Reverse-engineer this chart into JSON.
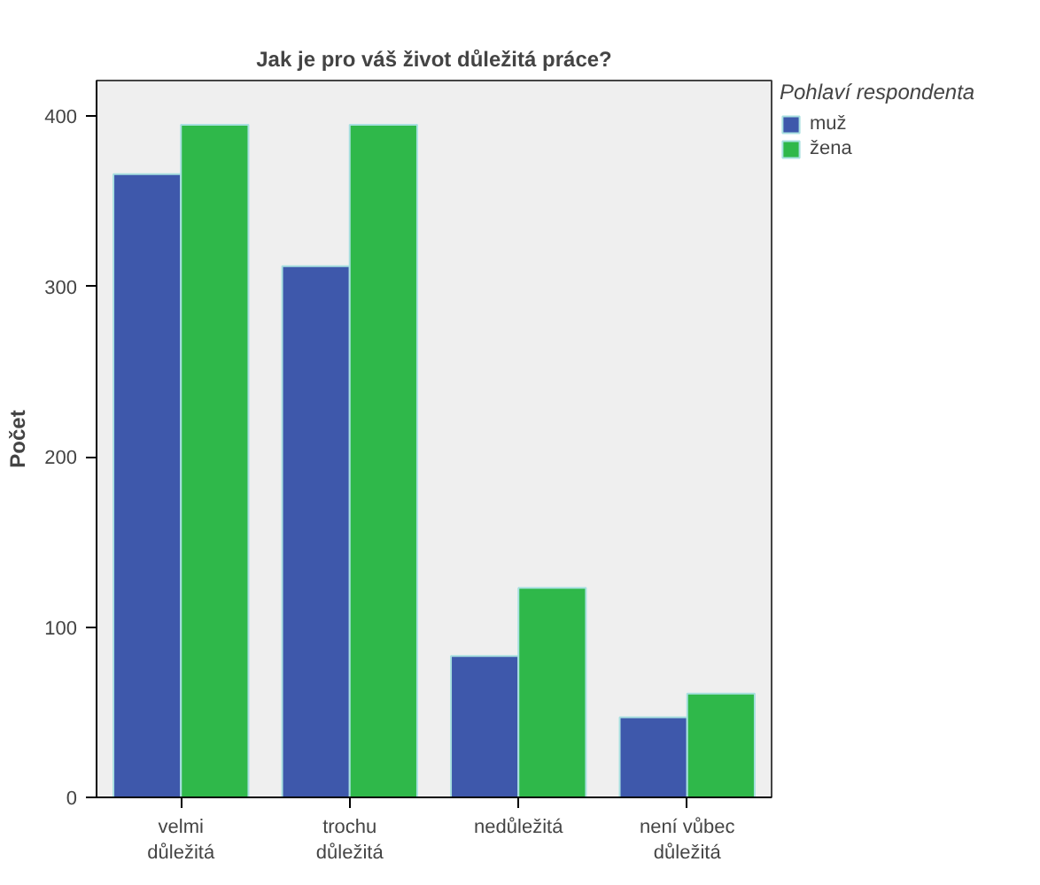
{
  "chart_data": {
    "type": "bar",
    "title": "Jak je pro váš život důležitá práce?",
    "ylabel": "Počet",
    "legend_title": "Pohlaví respondenta",
    "categories": [
      "velmi důležitá",
      "trochu důležitá",
      "nedůležitá",
      "není vůbec důležitá"
    ],
    "series": [
      {
        "name": "muž",
        "color": "#3e58ab",
        "values": [
          366,
          312,
          83,
          47
        ]
      },
      {
        "name": "žena",
        "color": "#2fb84a",
        "values": [
          395,
          395,
          123,
          61
        ]
      }
    ],
    "ylim": [
      0,
      421
    ],
    "yticks": [
      0,
      100,
      200,
      300,
      400
    ],
    "grid": false,
    "legend": "right"
  }
}
